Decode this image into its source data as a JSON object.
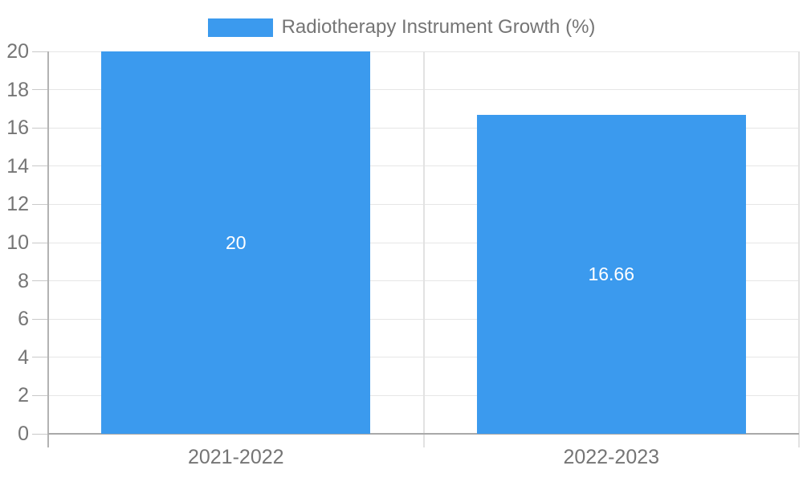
{
  "chart_data": {
    "type": "bar",
    "title": "Radiotherapy Instrument Growth (%)",
    "categories": [
      "2021-2022",
      "2022-2023"
    ],
    "values": [
      20,
      16.66
    ],
    "value_labels": [
      "20",
      "16.66"
    ],
    "xlabel": "",
    "ylabel": "",
    "ylim": [
      0,
      20
    ],
    "ytick_step": 2,
    "ytick_labels": [
      "0",
      "2",
      "4",
      "6",
      "8",
      "10",
      "12",
      "14",
      "16",
      "18",
      "20"
    ],
    "grid": true,
    "legend_position": "top",
    "bar_color": "#3B9AEE",
    "bar_label_color": "#FFFFFF"
  },
  "legend": {
    "label": "Radiotherapy Instrument Growth (%)",
    "swatch_color": "#3B9AEE"
  },
  "colors": {
    "axis_text": "#757575",
    "gridline": "#E6E6E6",
    "tick": "#C9C9C9",
    "axis_line": "#B3B3B3",
    "baseline": "#A9A9A9"
  }
}
